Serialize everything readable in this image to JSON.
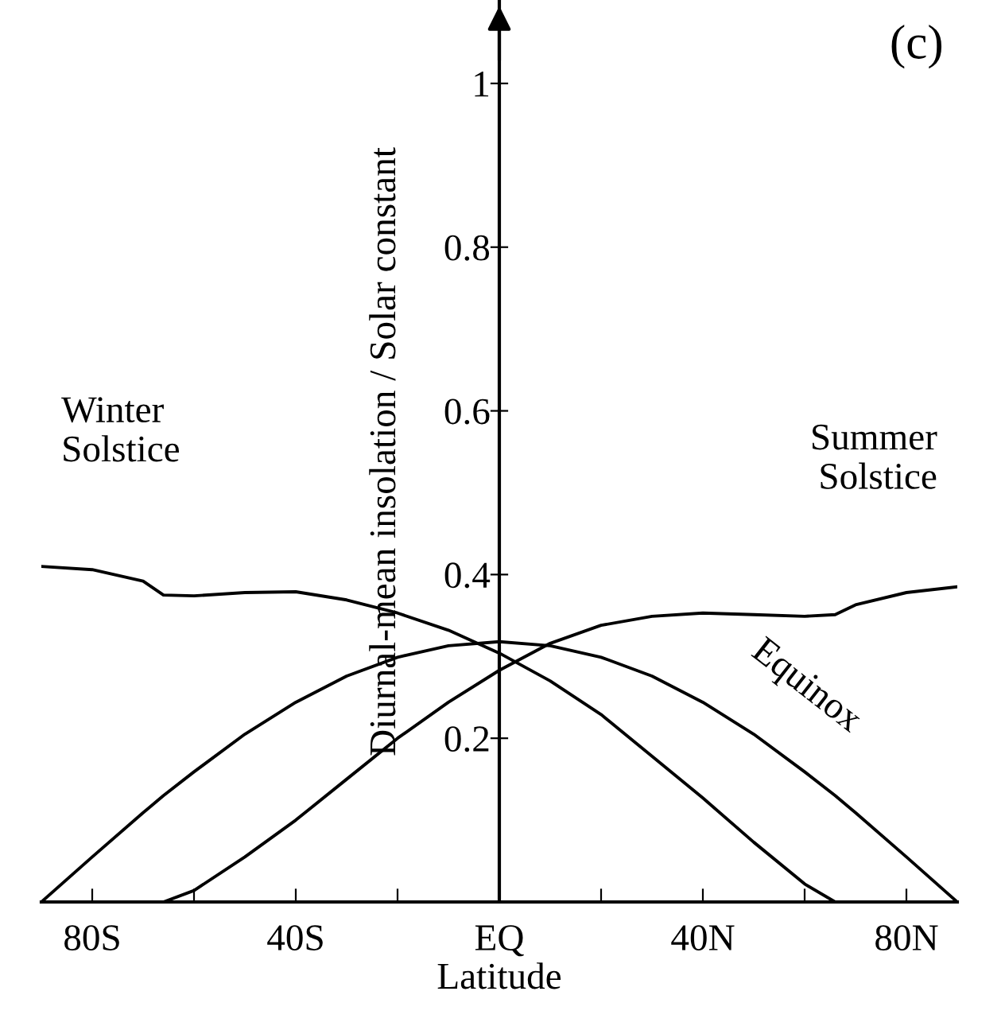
{
  "chart_data": {
    "type": "line",
    "xlabel": "Latitude",
    "ylabel": "Diurnal-mean insolation / Solar constant",
    "x": [
      -90,
      -80,
      -70,
      -66,
      -60,
      -50,
      -40,
      -30,
      -20,
      -10,
      0,
      10,
      20,
      30,
      40,
      50,
      60,
      66,
      70,
      80,
      90
    ],
    "series": [
      {
        "color": "#000000",
        "values": [
          0.41,
          0.406,
          0.392,
          0.375,
          0.374,
          0.378,
          0.379,
          0.369,
          0.353,
          0.332,
          0.304,
          0.27,
          0.229,
          0.178,
          0.127,
          0.073,
          0.022,
          0,
          0,
          0,
          0
        ]
      },
      {
        "color": "#000000",
        "values": [
          0,
          0,
          0,
          0,
          0.014,
          0.055,
          0.1,
          0.15,
          0.2,
          0.244,
          0.283,
          0.316,
          0.338,
          0.349,
          0.353,
          0.351,
          0.349,
          0.351,
          0.363,
          0.378,
          0.385
        ]
      },
      {
        "color": "#000000",
        "values": [
          0,
          0.055,
          0.109,
          0.13,
          0.159,
          0.205,
          0.244,
          0.276,
          0.299,
          0.313,
          0.318,
          0.313,
          0.299,
          0.276,
          0.244,
          0.205,
          0.159,
          0.13,
          0.109,
          0.055,
          0
        ]
      }
    ],
    "xlim": [
      -90,
      90
    ],
    "ylim": [
      0,
      1.1
    ],
    "xticks": [
      {
        "value": -80,
        "label": "80S"
      },
      {
        "value": -60,
        "label": null
      },
      {
        "value": -40,
        "label": "40S"
      },
      {
        "value": -20,
        "label": null
      },
      {
        "value": 0,
        "label": "EQ"
      },
      {
        "value": 20,
        "label": null
      },
      {
        "value": 40,
        "label": "40N"
      },
      {
        "value": 60,
        "label": null
      },
      {
        "value": 80,
        "label": "80N"
      }
    ],
    "yticks": [
      0.2,
      0.4,
      0.6,
      0.8,
      1
    ],
    "annotations": [
      {
        "text": "Winter\nSolstice",
        "x": -80,
        "y": 0.406
      },
      {
        "text": "Summer\nSolstice",
        "x": 80,
        "y": 0.378
      },
      {
        "text": "Equinox",
        "x": 55,
        "y": 0.182
      },
      "(c)"
    ],
    "grid": false,
    "legend": false
  }
}
